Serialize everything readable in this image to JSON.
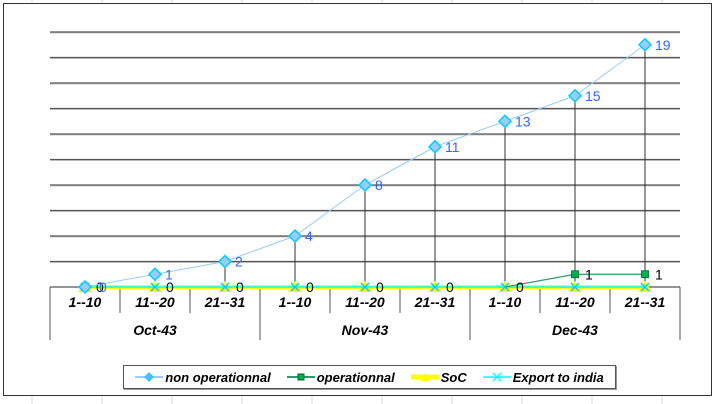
{
  "chart_data": {
    "type": "line",
    "title": "",
    "xlabel": "",
    "ylabel": "",
    "ylim": [
      0,
      20
    ],
    "grid": true,
    "y_gridline_step": 2,
    "y_axis_tick_labels_visible": false,
    "legend_position": "bottom",
    "categories": [
      "1--10",
      "11--20",
      "21--31",
      "1--10",
      "11--20",
      "21--31",
      "1--10",
      "11--20",
      "21--31"
    ],
    "category_groups": [
      {
        "label": "Oct-43",
        "span": 3
      },
      {
        "label": "Nov-43",
        "span": 3
      },
      {
        "label": "Dec-43",
        "span": 3
      }
    ],
    "drop_lines": true,
    "series": [
      {
        "name": "non operationnal",
        "color": "#99ccff",
        "marker": "diamond",
        "marker_color": "#00ccff",
        "label_color": "#3366ff",
        "values": [
          0,
          1,
          2,
          4,
          8,
          11,
          13,
          15,
          19
        ]
      },
      {
        "name": "operationnal",
        "color": "#339966",
        "marker": "square",
        "marker_color": "#00b050",
        "label_color": "#000000",
        "values": [
          0,
          0,
          0,
          0,
          0,
          0,
          0,
          1,
          1
        ]
      },
      {
        "name": "SoC",
        "color": "#ffff00",
        "marker": "triangle",
        "marker_color": "#ffff00",
        "values": [
          0,
          0,
          0,
          0,
          0,
          0,
          0,
          0,
          0
        ]
      },
      {
        "name": "Export to india",
        "color": "#00ffff",
        "marker": "x",
        "marker_color": "#00ffff",
        "values": [
          0,
          0,
          0,
          0,
          0,
          0,
          0,
          0,
          0
        ]
      }
    ]
  },
  "legend": {
    "items": [
      "non operationnal",
      "operationnal",
      "SoC",
      "Export to india"
    ]
  }
}
